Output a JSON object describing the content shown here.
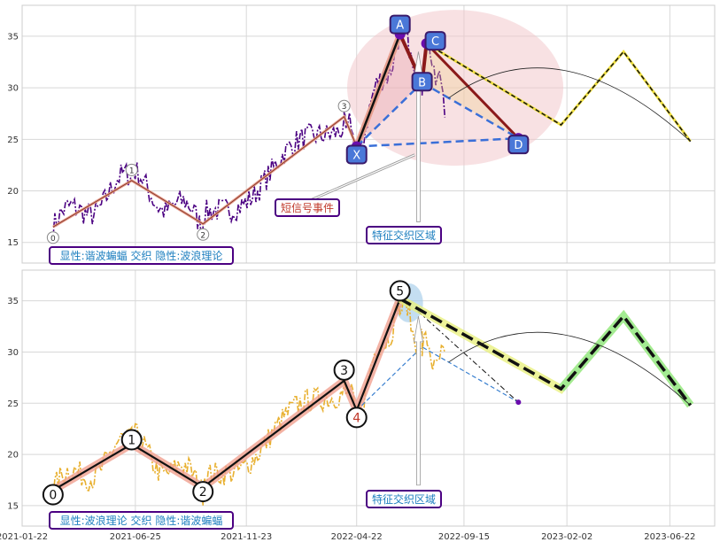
{
  "chart_data": [
    {
      "type": "line",
      "panel": "top",
      "ylim": [
        13,
        38
      ],
      "yticks": [
        15,
        20,
        25,
        30,
        35
      ],
      "grid": true,
      "series_colors": {
        "price": "#4b0082",
        "zigzag": "#c0392b",
        "harmonic_fill": "#e8a0a8",
        "projection": "#f0e040"
      },
      "wave_points": [
        {
          "label": "0",
          "x": "2021-03-05",
          "y": 16.5
        },
        {
          "label": "1",
          "x": "2021-06-20",
          "y": 21.0
        },
        {
          "label": "2",
          "x": "2021-09-25",
          "y": 16.8
        },
        {
          "label": "3",
          "x": "2022-04-05",
          "y": 27.2
        }
      ],
      "harmonic_points": [
        {
          "label": "X",
          "x": "2022-04-22",
          "y": 24.3
        },
        {
          "label": "A",
          "x": "2022-06-20",
          "y": 35.2
        },
        {
          "label": "B",
          "x": "2022-07-20",
          "y": 30.5
        },
        {
          "label": "C",
          "x": "2022-07-26",
          "y": 34.3
        },
        {
          "label": "D",
          "x": "2022-11-28",
          "y": 25.1
        }
      ],
      "projection_points": [
        {
          "x": "2022-07-26",
          "y": 34.3
        },
        {
          "x": "2023-01-25",
          "y": 26.4
        },
        {
          "x": "2023-04-20",
          "y": 33.5
        },
        {
          "x": "2023-07-20",
          "y": 24.8
        }
      ],
      "annotations": {
        "legend_box": "显性:谐波蝙蝠 交织 隐性:波浪理论",
        "signal_event": "短信号事件",
        "feature_zone": "特征交织区域"
      }
    },
    {
      "type": "line",
      "panel": "bottom",
      "ylim": [
        13,
        38
      ],
      "yticks": [
        15,
        20,
        25,
        30,
        35
      ],
      "grid": true,
      "series_colors": {
        "price": "#e8b030",
        "zigzag": "#111111",
        "wave_fill": "#f0a090",
        "projection_fill": "#90e890"
      },
      "wave_points": [
        {
          "label": "0",
          "x": "2021-03-05",
          "y": 16.5
        },
        {
          "label": "1",
          "x": "2021-06-20",
          "y": 21.0
        },
        {
          "label": "2",
          "x": "2021-09-25",
          "y": 16.8
        },
        {
          "label": "3",
          "x": "2022-04-05",
          "y": 27.2
        },
        {
          "label": "4",
          "x": "2022-04-22",
          "y": 24.3
        },
        {
          "label": "5",
          "x": "2022-06-20",
          "y": 35.2
        }
      ],
      "projection_points": [
        {
          "x": "2022-06-20",
          "y": 35.2
        },
        {
          "x": "2023-01-25",
          "y": 26.4
        },
        {
          "x": "2023-04-20",
          "y": 33.5
        },
        {
          "x": "2023-07-20",
          "y": 24.8
        }
      ],
      "annotations": {
        "legend_box": "显性:波浪理论 交织 隐性:谐波蝙蝠",
        "feature_zone": "特征交织区域"
      }
    }
  ],
  "x_axis": {
    "range": [
      "2021-01-22",
      "2023-08-22"
    ],
    "ticks": [
      "2021-01-22",
      "2021-06-25",
      "2021-11-23",
      "2022-04-22",
      "2022-09-15",
      "2023-02-02",
      "2023-06-22"
    ]
  }
}
